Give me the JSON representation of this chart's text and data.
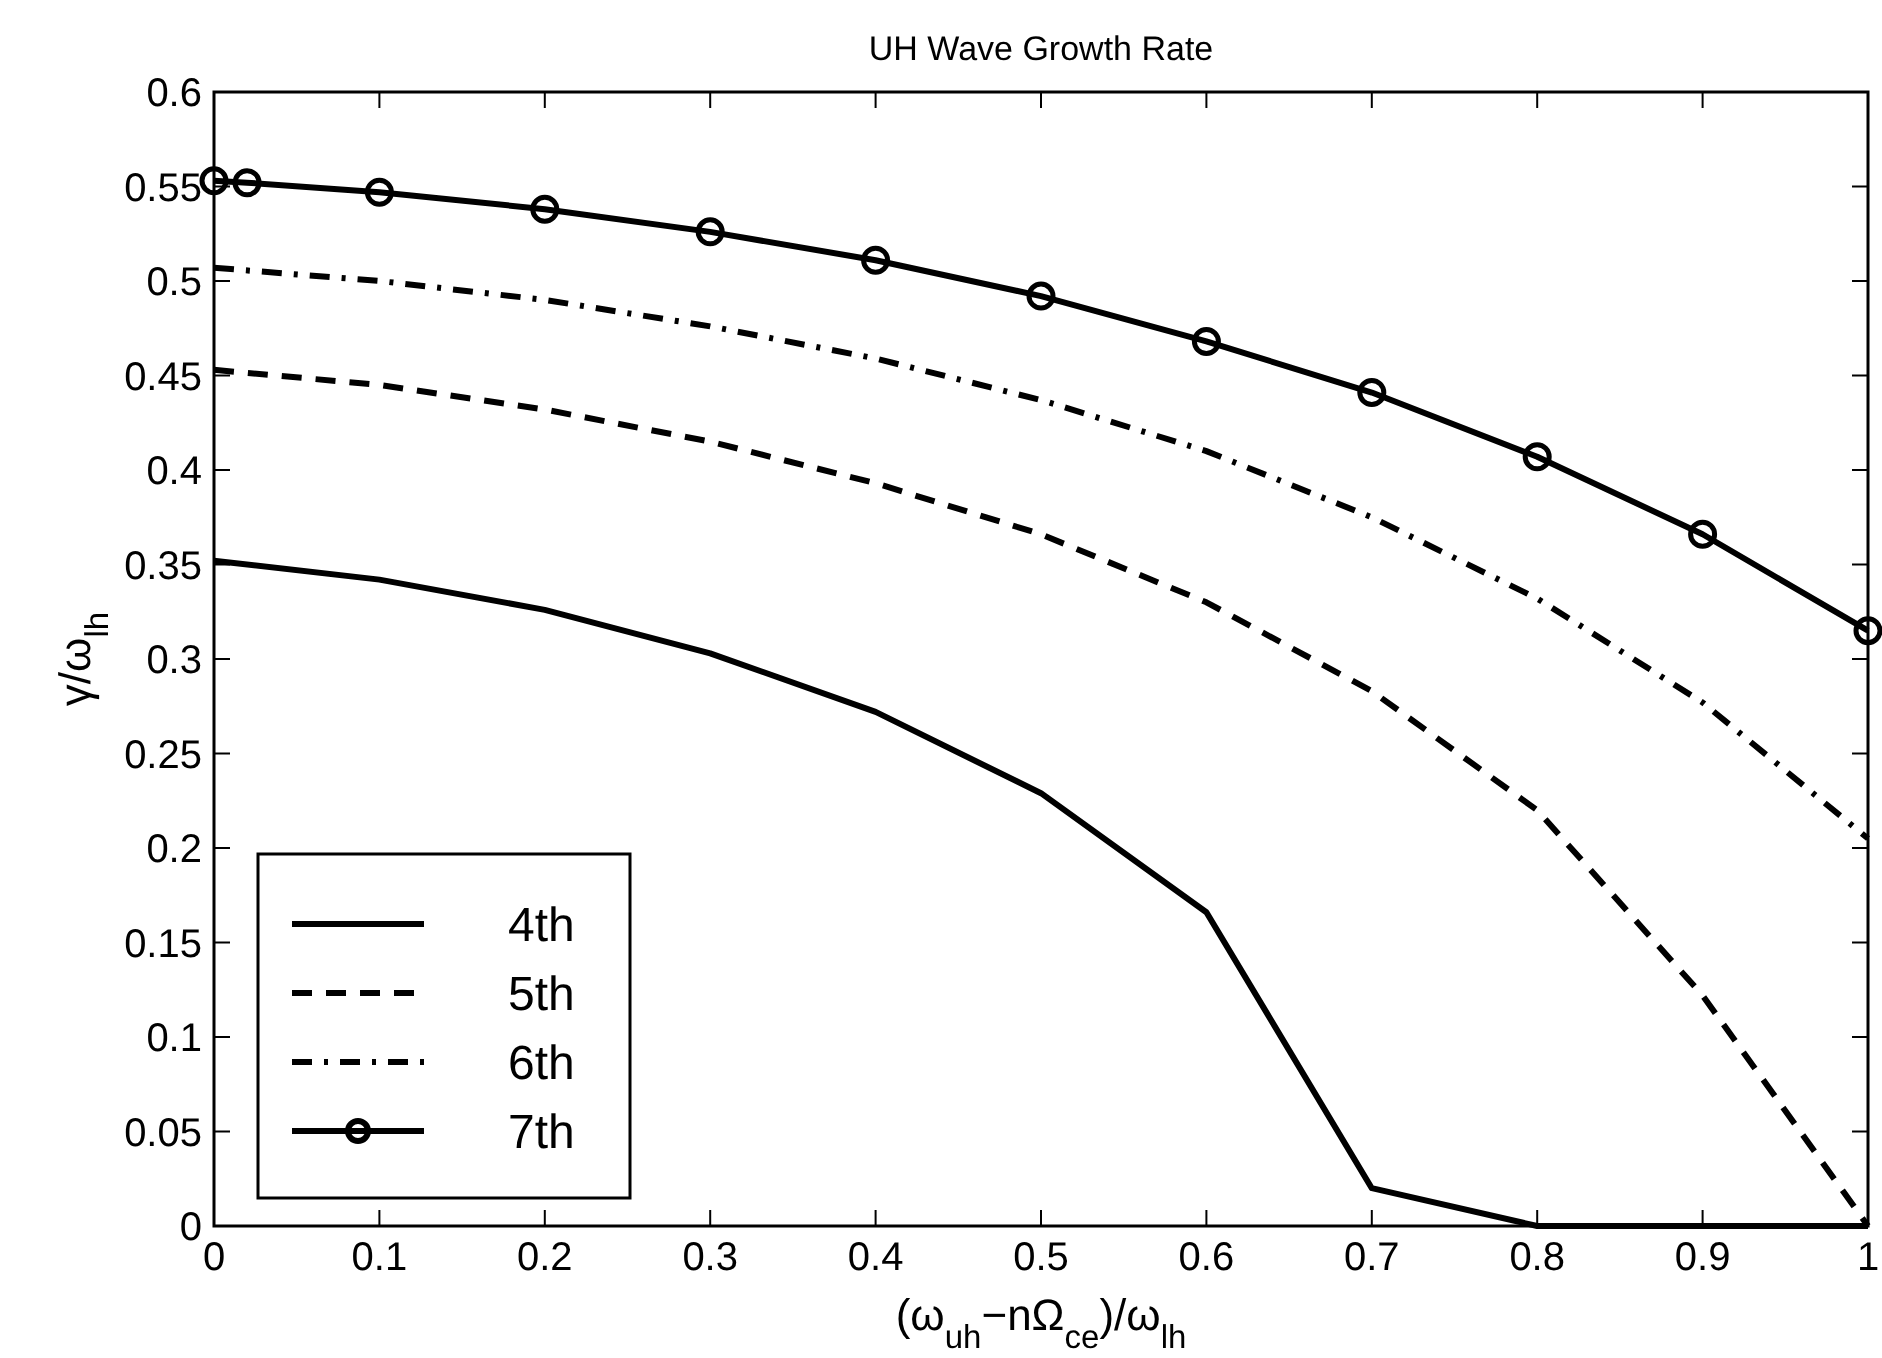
{
  "chart_data": {
    "type": "line",
    "title": "UH Wave Growth Rate",
    "xlabel": "(ω$_{uh}$−nΩ$_{ce}$)/ω$_{lh}$",
    "ylabel": "γ/ω$_{lh}$",
    "x": [
      0,
      0.1,
      0.2,
      0.3,
      0.4,
      0.5,
      0.6,
      0.7,
      0.8,
      0.9,
      1
    ],
    "series": [
      {
        "name": "4th",
        "color": "#000000",
        "line_style": "solid",
        "marker": "none",
        "values": [
          0.352,
          0.342,
          0.326,
          0.303,
          0.272,
          0.229,
          0.166,
          0.02,
          0,
          0,
          0
        ]
      },
      {
        "name": "5th",
        "color": "#000000",
        "line_style": "dashed",
        "marker": "none",
        "values": [
          0.453,
          0.445,
          0.432,
          0.415,
          0.393,
          0.366,
          0.33,
          0.283,
          0.22,
          0.122,
          0
        ]
      },
      {
        "name": "6th",
        "color": "#000000",
        "line_style": "dashdot",
        "marker": "none",
        "values": [
          0.507,
          0.5,
          0.49,
          0.476,
          0.459,
          0.437,
          0.41,
          0.375,
          0.332,
          0.277,
          0.205
        ]
      },
      {
        "name": "7th",
        "color": "#000000",
        "line_style": "solid",
        "marker": "circle",
        "x": [
          0,
          0.02,
          0.1,
          0.2,
          0.3,
          0.4,
          0.5,
          0.6,
          0.7,
          0.8,
          0.9,
          1
        ],
        "values": [
          0.553,
          0.552,
          0.547,
          0.538,
          0.526,
          0.511,
          0.492,
          0.468,
          0.441,
          0.407,
          0.366,
          0.315
        ]
      }
    ],
    "xlim": [
      0,
      1
    ],
    "ylim": [
      0,
      0.6
    ],
    "xticks": [
      0,
      0.1,
      0.2,
      0.3,
      0.4,
      0.5,
      0.6,
      0.7,
      0.8,
      0.9,
      1
    ],
    "yticks": [
      0,
      0.05,
      0.1,
      0.15,
      0.2,
      0.25,
      0.3,
      0.35,
      0.4,
      0.45,
      0.5,
      0.55,
      0.6
    ],
    "grid": false,
    "legend": "bottom left"
  }
}
